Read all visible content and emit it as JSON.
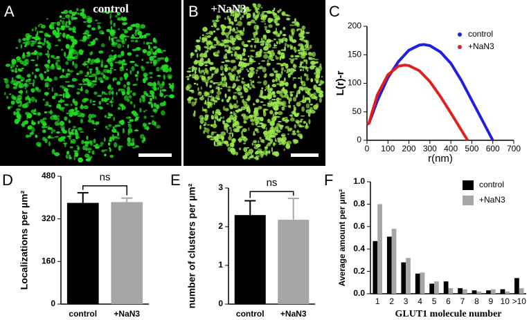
{
  "images": [
    {
      "letter": "A",
      "label": "control"
    },
    {
      "letter": "B",
      "label": "+NaN3"
    }
  ],
  "chart_data": [
    {
      "type": "line",
      "letter": "C",
      "xlabel": "r(nm)",
      "ylabel": "L(r)-r",
      "xlim": [
        0,
        700
      ],
      "xticks": [
        0,
        100,
        200,
        300,
        400,
        500,
        600,
        700
      ],
      "ylim": [
        0,
        200
      ],
      "yticks": [
        0,
        50,
        100,
        150,
        200
      ],
      "legend": "upper right",
      "series": [
        {
          "name": "control",
          "color": "#1f1fe0",
          "x": [
            0,
            10,
            25,
            50,
            100,
            150,
            200,
            250,
            270,
            300,
            350,
            400,
            450,
            500,
            550,
            600
          ],
          "values": [
            28,
            30,
            45,
            70,
            110,
            138,
            158,
            167,
            168,
            166,
            155,
            135,
            105,
            70,
            35,
            0
          ]
        },
        {
          "name": "+NaN3",
          "color": "#e01f1f",
          "x": [
            0,
            10,
            25,
            50,
            100,
            150,
            180,
            200,
            250,
            300,
            350,
            400,
            450,
            480
          ],
          "values": [
            28,
            30,
            50,
            80,
            115,
            130,
            132,
            131,
            122,
            103,
            77,
            48,
            18,
            0
          ]
        }
      ]
    },
    {
      "type": "bar",
      "letter": "D",
      "ylabel": "Localizations per µm²",
      "categories": [
        "control",
        "+NaN3"
      ],
      "values": [
        380,
        383
      ],
      "errors": [
        38,
        15
      ],
      "colors": [
        "#000000",
        "#a6a6a6"
      ],
      "ylim": [
        0,
        480
      ],
      "yticks": [
        0,
        160,
        320,
        480
      ],
      "annotation": "ns"
    },
    {
      "type": "bar",
      "letter": "E",
      "ylabel": "number of clusters per µm²",
      "categories": [
        "control",
        "+NaN3"
      ],
      "values": [
        2.3,
        2.18
      ],
      "errors": [
        0.37,
        0.55
      ],
      "colors": [
        "#000000",
        "#a6a6a6"
      ],
      "ylim": [
        0,
        3
      ],
      "yticks": [
        0,
        1,
        2,
        3
      ],
      "annotation": "ns"
    },
    {
      "type": "grouped-bar",
      "letter": "F",
      "xlabel": "GLUT1 molecule number",
      "ylabel": "Average amount per µm²",
      "categories": [
        "1",
        "2",
        "3",
        "4",
        "5",
        "6",
        "7",
        "8",
        "9",
        "10",
        ">10"
      ],
      "ylim": [
        0,
        1
      ],
      "yticks": [
        {
          "value": 0,
          "label": "0.0"
        },
        0.2,
        0.4,
        0.6,
        0.8,
        {
          "value": 1,
          "label": "1.0"
        }
      ],
      "legend": "upper right",
      "series": [
        {
          "name": "control",
          "color": "#000000",
          "values": [
            0.47,
            0.51,
            0.28,
            0.18,
            0.09,
            0.11,
            0.05,
            0.03,
            0.03,
            0.04,
            0.14
          ]
        },
        {
          "name": "+NaN3",
          "color": "#a6a6a6",
          "values": [
            0.8,
            0.58,
            0.32,
            0.19,
            0.11,
            0.05,
            0.04,
            0.02,
            0.04,
            0.02,
            0.05
          ]
        }
      ]
    }
  ]
}
